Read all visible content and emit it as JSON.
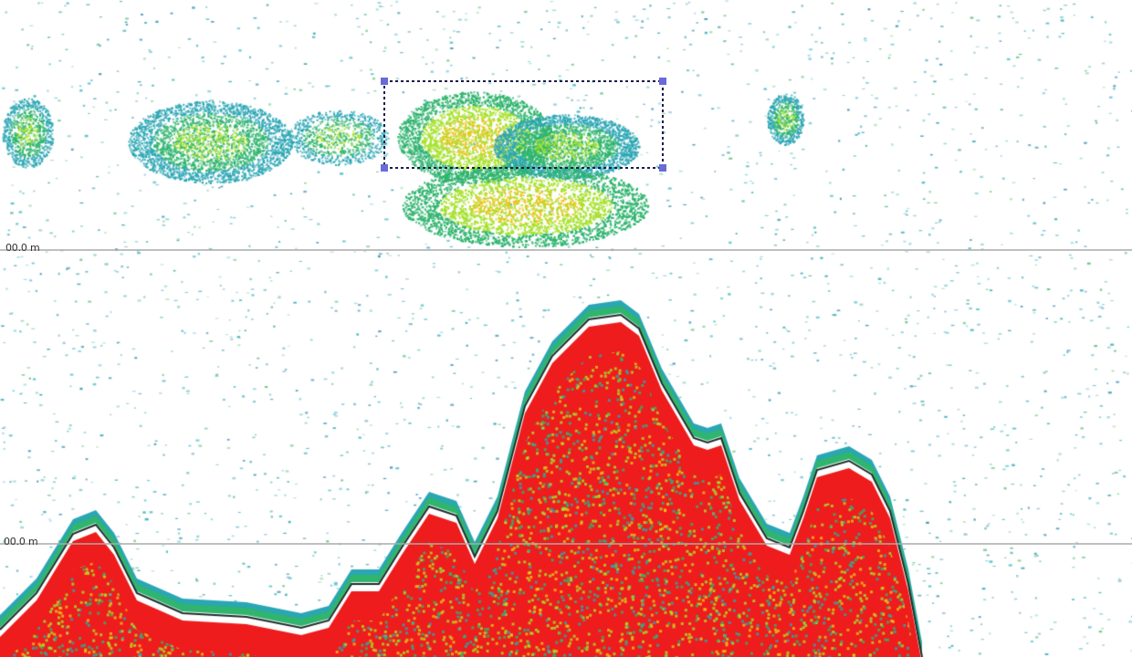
{
  "echogram": {
    "depth_lines": [
      {
        "label": "00.0 m"
      },
      {
        "label": "00.0 m"
      }
    ],
    "selection_box": {
      "present": true,
      "style": "dotted"
    },
    "colors": {
      "background": "#ffffff",
      "speckle": "#2aa6b4",
      "weak_echo": "#2fb56e",
      "medium_echo": "#a6e22a",
      "strong_echo": "#f2c21a",
      "bottom_echo": "#ee1c1c",
      "depth_line": "#aaaaaa",
      "selection_outline": "#1a1a4a",
      "selection_handle": "#6a6ad8"
    }
  }
}
